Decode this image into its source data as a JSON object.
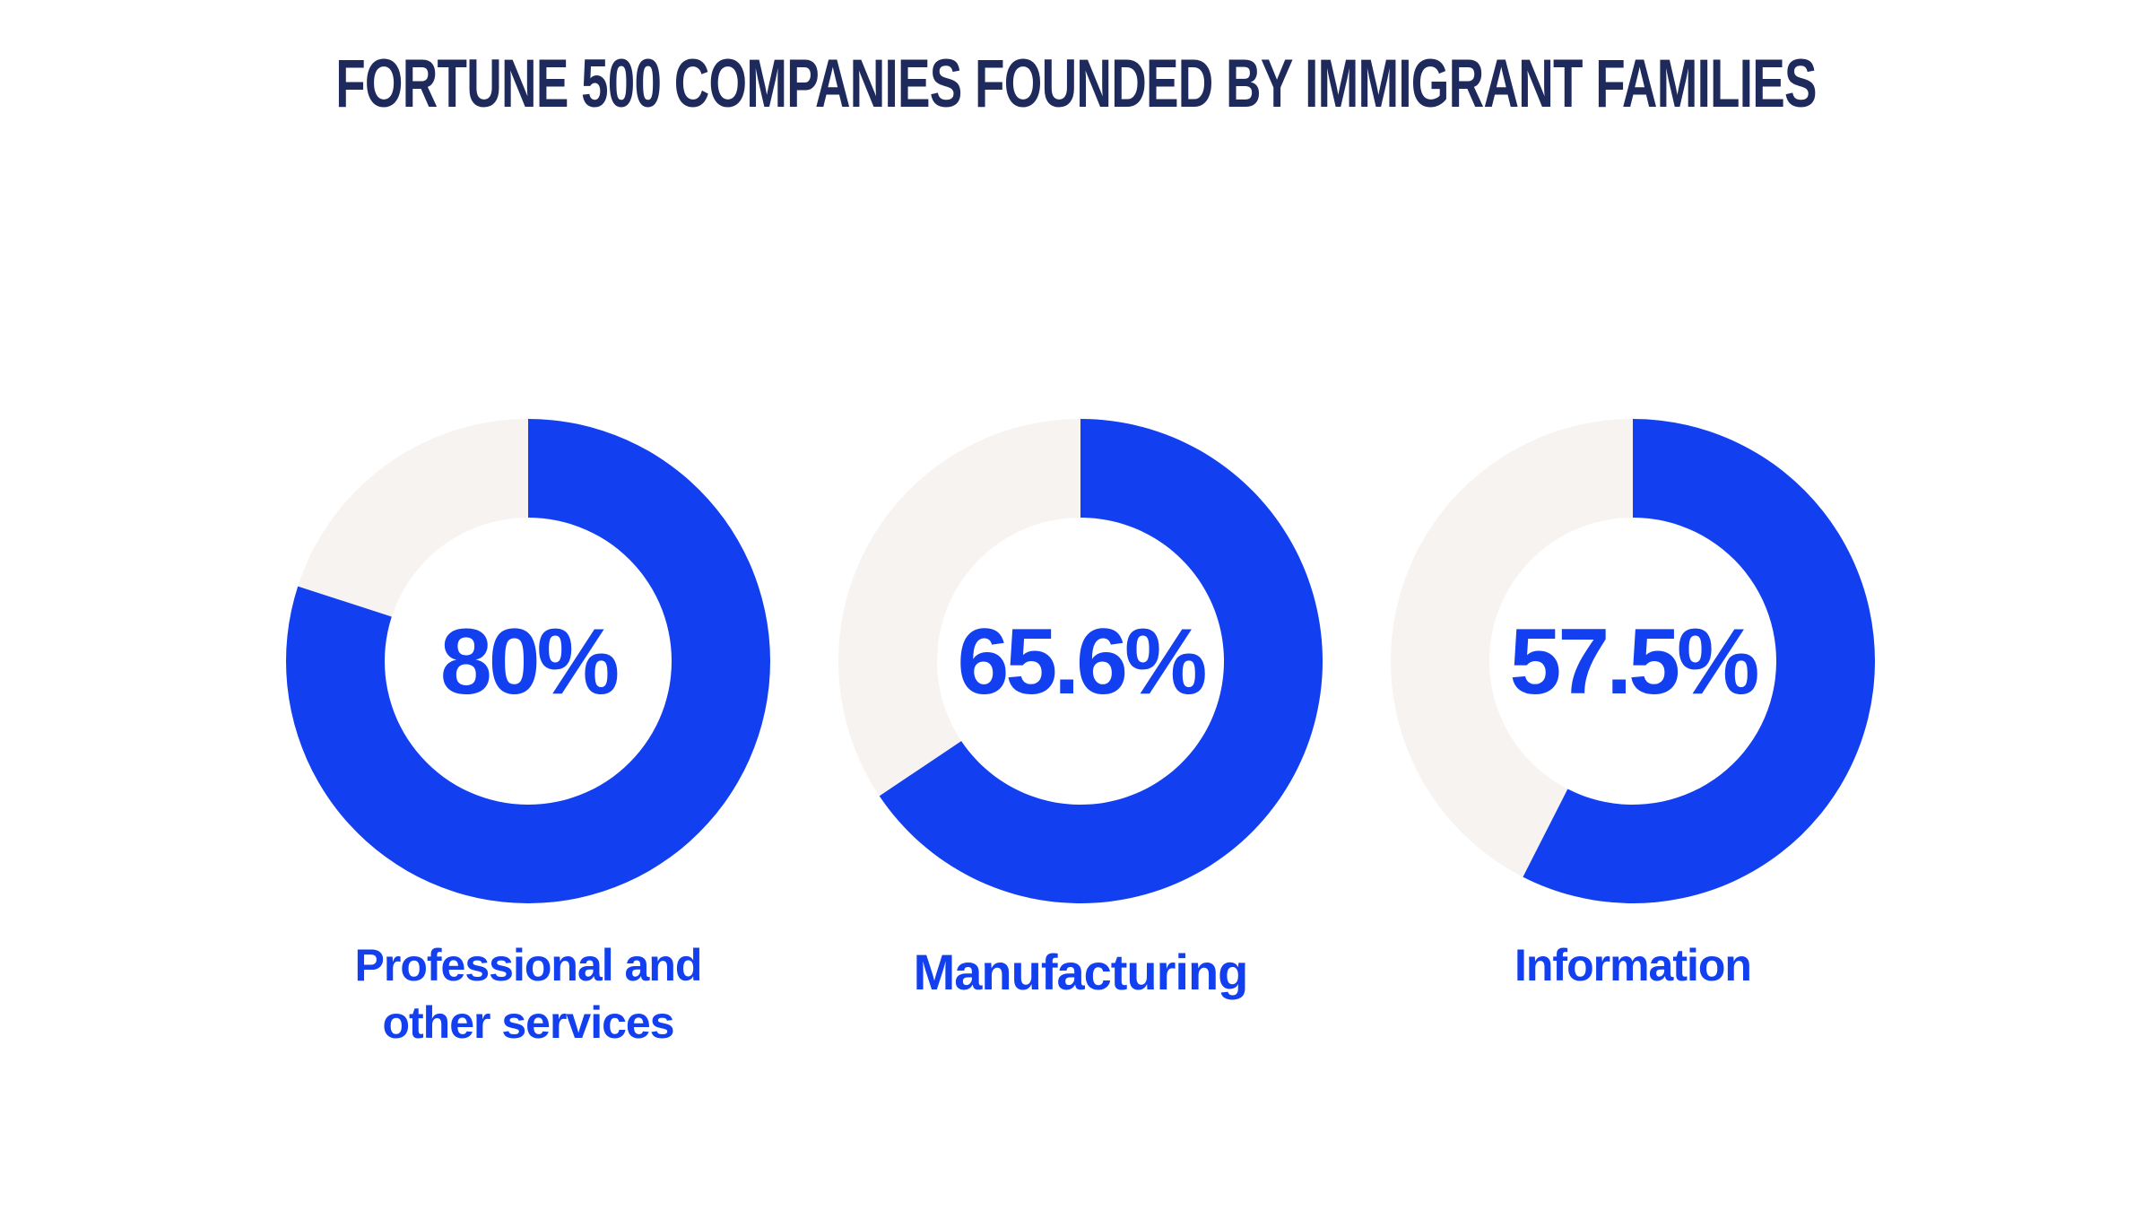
{
  "chart_data": {
    "type": "donut",
    "title": "FORTUNE 500 COMPANIES FOUNDED BY IMMIGRANT FAMILIES",
    "categories": [
      "Professional and other services",
      "Manufacturing",
      "Information"
    ],
    "category_lines": [
      [
        "Professional and",
        "other services"
      ],
      [
        "Manufacturing"
      ],
      [
        "Information"
      ]
    ],
    "values": [
      80,
      65.6,
      57.5
    ],
    "value_labels": [
      "80%",
      "65.6%",
      "57.5%"
    ],
    "unit": "%",
    "max": 100
  },
  "colors": {
    "title": "#1f2a5c",
    "filled": "#1240f0",
    "track": "#f7f3f0",
    "label": "#1240f0",
    "background": "#ffffff"
  }
}
